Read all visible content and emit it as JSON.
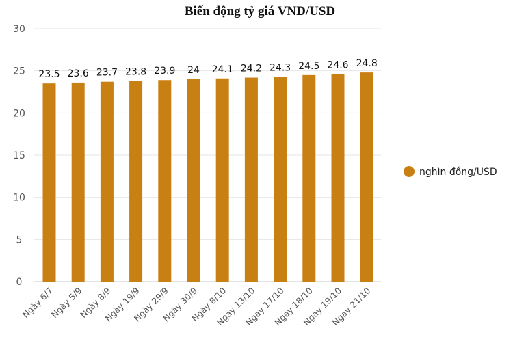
{
  "chart_data": {
    "type": "bar",
    "title": "Biến động tỷ giá VND/USD",
    "categories": [
      "Ngày 6/7",
      "Ngày 5/9",
      "Ngày 8/9",
      "Ngày 19/9",
      "Ngày 29/9",
      "Ngày 30/9",
      "Ngày 8/10",
      "Ngày 13/10",
      "Ngày 17/10",
      "Ngày 18/10",
      "Ngày 19/10",
      "Ngày 21/10"
    ],
    "series": [
      {
        "name": "nghìn đồng/USD",
        "values": [
          23.5,
          23.6,
          23.7,
          23.8,
          23.9,
          24,
          24.1,
          24.2,
          24.3,
          24.5,
          24.6,
          24.8
        ],
        "color": "#c98012"
      }
    ],
    "ylim": [
      0,
      30
    ],
    "yticks": [
      0,
      5,
      10,
      15,
      20,
      25,
      30
    ],
    "grid": true,
    "legend_position": "right",
    "data_labels": true
  }
}
